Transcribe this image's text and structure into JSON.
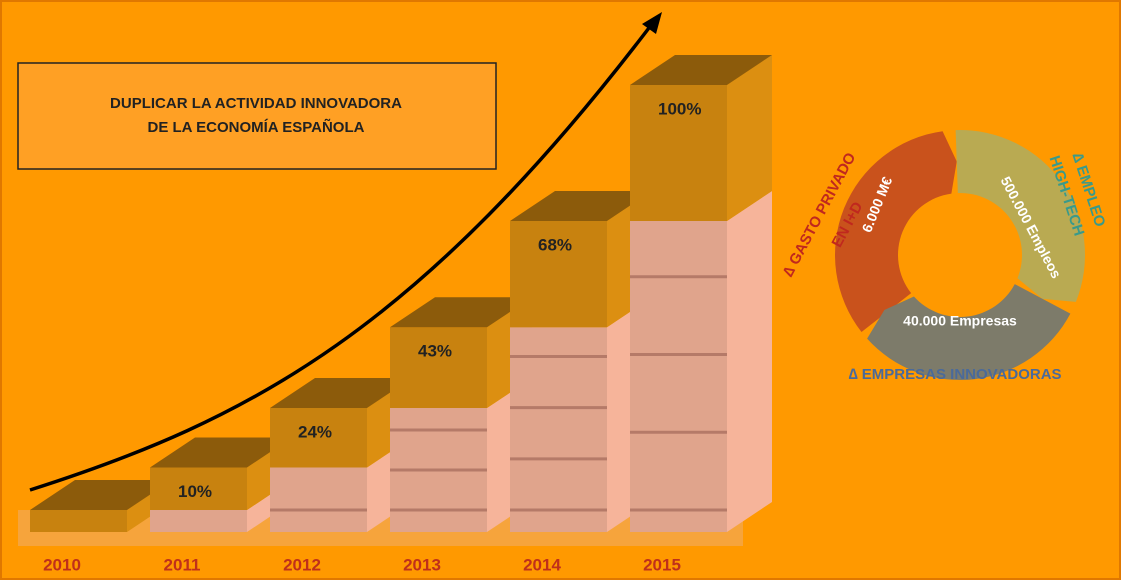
{
  "chart_data": {
    "type": "bar",
    "title": [
      "DUPLICAR LA ACTIVIDAD INNOVADORA",
      "DE LA ECONOMÍA ESPAÑOLA"
    ],
    "categories": [
      "2010",
      "2011",
      "2012",
      "2013",
      "2014",
      "2015"
    ],
    "values": [
      0,
      10,
      24,
      43,
      68,
      100
    ],
    "value_labels": [
      null,
      "10%",
      "24%",
      "43%",
      "68%",
      "100%"
    ],
    "color": "#c8820f",
    "base_color": "#e0a48c"
  },
  "cycle": {
    "segments": [
      {
        "label": "6.000 M€",
        "caption": [
          "∆ GASTO PRIVADO",
          "EN I+D"
        ],
        "color": "#c9521c"
      },
      {
        "label": "500.000 Empleos",
        "caption": [
          "∆ EMPLEO",
          "HIGH-TECH"
        ],
        "color": "#b9aa52"
      },
      {
        "label": "40.000 Empresas",
        "caption": [
          "∆ EMPRESAS INNOVADORAS"
        ],
        "color": "#7d7b6a"
      }
    ]
  }
}
